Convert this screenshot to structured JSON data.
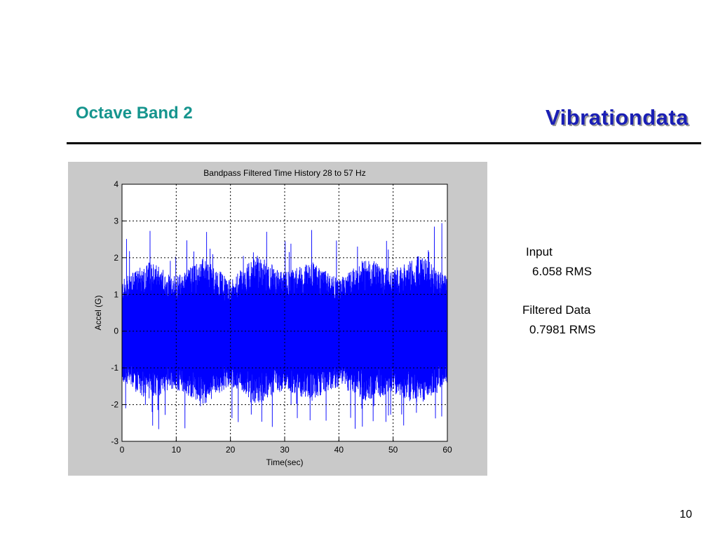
{
  "slide": {
    "title": "Octave Band 2",
    "brand": "Vibrationdata",
    "page_number": "10",
    "accent_color": "#16958e",
    "brand_color": "#1a1fb5"
  },
  "stats": {
    "input_label": "Input",
    "input_value": "6.058 RMS",
    "filtered_label": "Filtered Data",
    "filtered_value": "0.7981 RMS"
  },
  "chart_data": {
    "type": "line",
    "title": "Bandpass Filtered Time History 28 to 57 Hz",
    "xlabel": "Time(sec)",
    "ylabel": "Accel (G)",
    "xlim": [
      0,
      60
    ],
    "ylim": [
      -3,
      4
    ],
    "xticks": [
      0,
      10,
      20,
      30,
      40,
      50,
      60
    ],
    "yticks": [
      -3,
      -2,
      -1,
      0,
      1,
      2,
      3,
      4
    ],
    "grid": true,
    "grid_style": "dotted",
    "series": [
      {
        "color": "#0000ff",
        "description_values": "dense band-limited noise centered at 0",
        "envelope_upper": [
          [
            0,
            1.4
          ],
          [
            5,
            1.9
          ],
          [
            10,
            1.5
          ],
          [
            15,
            2.0
          ],
          [
            20,
            1.4
          ],
          [
            25,
            2.1
          ],
          [
            30,
            1.6
          ],
          [
            35,
            1.9
          ],
          [
            40,
            1.4
          ],
          [
            45,
            2.0
          ],
          [
            50,
            1.7
          ],
          [
            55,
            2.1
          ],
          [
            60,
            1.5
          ]
        ],
        "envelope_lower": [
          [
            0,
            -1.4
          ],
          [
            5,
            -1.9
          ],
          [
            10,
            -1.6
          ],
          [
            15,
            -2.0
          ],
          [
            20,
            -1.5
          ],
          [
            25,
            -2.0
          ],
          [
            30,
            -1.6
          ],
          [
            35,
            -1.9
          ],
          [
            40,
            -1.5
          ],
          [
            45,
            -1.9
          ],
          [
            50,
            -1.7
          ],
          [
            55,
            -2.0
          ],
          [
            60,
            -1.5
          ]
        ],
        "peak_max": 3.0,
        "peak_min": -2.7
      }
    ]
  }
}
